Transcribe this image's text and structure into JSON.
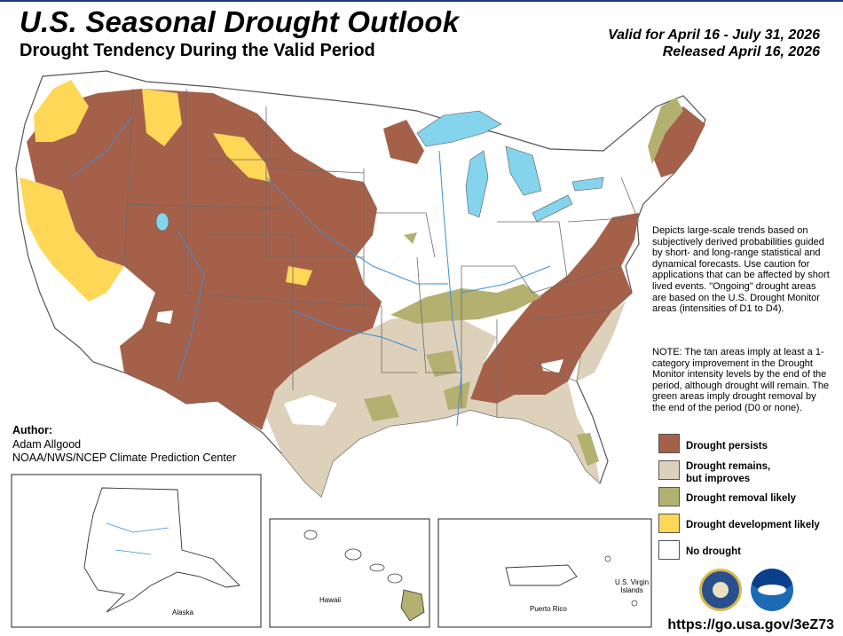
{
  "header": {
    "title": "U.S. Seasonal Drought Outlook",
    "subtitle": "Drought Tendency During the Valid Period",
    "valid_line": "Valid for April 16 - July 31, 2026",
    "released_line": "Released April 16, 2026"
  },
  "description": "Depicts large-scale trends based on subjectively derived probabilities guided by short- and long-range statistical and dynamical forecasts. Use caution for applications that can be affected by short lived events. \"Ongoing\" drought areas are based on the U.S. Drought Monitor areas (intensities of D1 to D4).",
  "note": "NOTE: The tan areas imply at least a 1-category improvement in the Drought Monitor intensity levels by the end of the period, although drought will remain. The green areas imply drought removal by the end of the period (D0 or none).",
  "author": {
    "label": "Author:",
    "name": "Adam Allgood",
    "org": "NOAA/NWS/NCEP Climate Prediction Center"
  },
  "legend": [
    {
      "label": "Drought persists",
      "color": "#a5604a"
    },
    {
      "label_line1": "Drought remains,",
      "label_line2": "but improves",
      "color": "#ddd1bb"
    },
    {
      "label": "Drought removal likely",
      "color": "#b3b070"
    },
    {
      "label": "Drought development likely",
      "color": "#fed757"
    },
    {
      "label": "No drought",
      "color": "#ffffff"
    }
  ],
  "insets": {
    "alaska": "Alaska",
    "hawaii": "Hawaii",
    "puerto_rico": "Puerto Rico",
    "usvi_line1": "U.S. Virgin",
    "usvi_line2": "Islands"
  },
  "url": "https://go.usa.gov/3eZ73",
  "colors": {
    "water": "#85d4ee",
    "persists": "#a5604a",
    "improves": "#ddd1bb",
    "removal": "#b3b070",
    "development": "#fed757",
    "rivers": "#3b8fd6",
    "borders": "#6a6a6a"
  },
  "logos": [
    "doc-seal-icon",
    "noaa-logo-icon"
  ]
}
